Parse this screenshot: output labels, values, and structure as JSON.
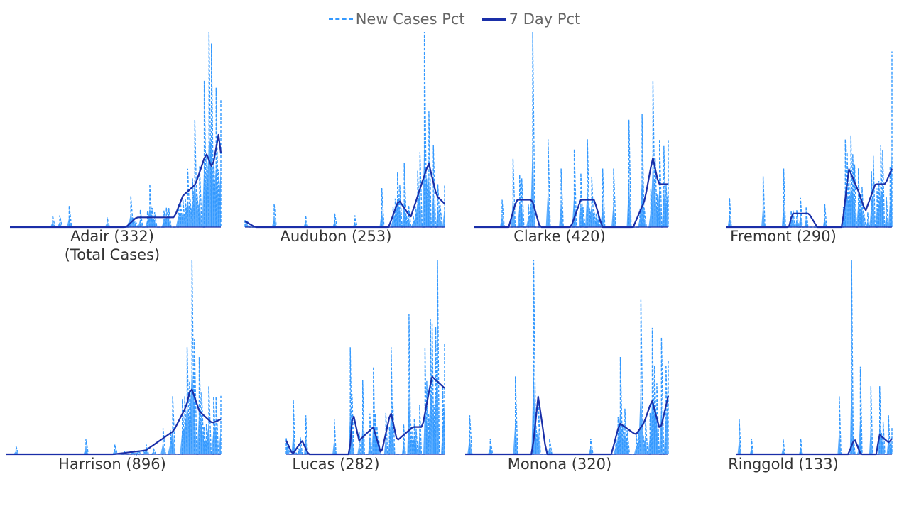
{
  "legend": {
    "series1": "New Cases Pct",
    "series2": "7 Day Pct"
  },
  "colors": {
    "new_cases": "#3399ff",
    "area_fill": "#55aaff",
    "seven_day": "#1a2fa8"
  },
  "chart_data": {
    "type": "line",
    "layout": "small-multiples 2x4",
    "series": [
      {
        "name": "New Cases Pct",
        "style": "dashed",
        "fill": "area"
      },
      {
        "name": "7 Day Pct",
        "style": "solid"
      }
    ],
    "axes": {
      "x_visible": false,
      "y_visible": false,
      "grid": false
    },
    "legend_position": "top-center",
    "panels": [
      {
        "county": "Adair",
        "label": "Adair (332)",
        "sublabel": "(Total Cases)",
        "peaks": [
          [
            0.2,
            0.06
          ],
          [
            0.24,
            0.06
          ],
          [
            0.28,
            0.11
          ],
          [
            0.46,
            0.05
          ],
          [
            0.57,
            0.16
          ],
          [
            0.66,
            0.22
          ],
          [
            0.74,
            0.06
          ],
          [
            0.82,
            0.14
          ],
          [
            0.86,
            0.25
          ],
          [
            0.88,
            0.55
          ],
          [
            0.92,
            0.75
          ],
          [
            0.94,
            1.0
          ],
          [
            0.96,
            0.94
          ],
          [
            0.98,
            0.6
          ],
          [
            1.0,
            0.65
          ]
        ],
        "peak_mean": [
          [
            0.0,
            0.0
          ],
          [
            0.55,
            0.0
          ],
          [
            0.6,
            0.05
          ],
          [
            0.78,
            0.05
          ],
          [
            0.82,
            0.16
          ],
          [
            0.88,
            0.22
          ],
          [
            0.93,
            0.38
          ],
          [
            0.96,
            0.3
          ],
          [
            0.99,
            0.48
          ],
          [
            1.0,
            0.38
          ]
        ]
      },
      {
        "county": "Audubon",
        "label": "Audubon (253)",
        "sublabel": "",
        "peaks": [
          [
            0.15,
            0.12
          ],
          [
            0.3,
            0.06
          ],
          [
            0.45,
            0.07
          ],
          [
            0.55,
            0.06
          ],
          [
            0.68,
            0.2
          ],
          [
            0.76,
            0.28
          ],
          [
            0.8,
            0.33
          ],
          [
            0.9,
            1.0
          ],
          [
            0.94,
            0.42
          ],
          [
            0.97,
            0.22
          ]
        ],
        "peak_mean": [
          [
            0.0,
            0.03
          ],
          [
            0.05,
            0.0
          ],
          [
            0.72,
            0.0
          ],
          [
            0.77,
            0.14
          ],
          [
            0.83,
            0.05
          ],
          [
            0.92,
            0.33
          ],
          [
            0.96,
            0.16
          ],
          [
            1.0,
            0.12
          ]
        ]
      },
      {
        "county": "Clarke",
        "label": "Clarke (420)",
        "sublabel": "",
        "peaks": [
          [
            0.15,
            0.14
          ],
          [
            0.2,
            0.35
          ],
          [
            0.25,
            0.25
          ],
          [
            0.3,
            1.0
          ],
          [
            0.38,
            0.45
          ],
          [
            0.45,
            0.3
          ],
          [
            0.52,
            0.4
          ],
          [
            0.58,
            0.45
          ],
          [
            0.66,
            0.3
          ],
          [
            0.72,
            0.3
          ],
          [
            0.8,
            0.55
          ],
          [
            0.86,
            0.58
          ],
          [
            0.92,
            0.75
          ],
          [
            0.96,
            0.45
          ],
          [
            1.0,
            0.45
          ]
        ],
        "peak_mean": [
          [
            0.0,
            0.0
          ],
          [
            0.18,
            0.0
          ],
          [
            0.22,
            0.14
          ],
          [
            0.3,
            0.14
          ],
          [
            0.34,
            0.0
          ],
          [
            0.5,
            0.0
          ],
          [
            0.55,
            0.14
          ],
          [
            0.62,
            0.14
          ],
          [
            0.66,
            0.0
          ],
          [
            0.82,
            0.0
          ],
          [
            0.88,
            0.14
          ],
          [
            0.92,
            0.36
          ],
          [
            0.95,
            0.22
          ],
          [
            1.0,
            0.22
          ]
        ]
      },
      {
        "county": "Fremont",
        "label": "Fremont (290)",
        "sublabel": "",
        "peaks": [
          [
            0.02,
            0.15
          ],
          [
            0.22,
            0.26
          ],
          [
            0.35,
            0.3
          ],
          [
            0.45,
            0.15
          ],
          [
            0.6,
            0.12
          ],
          [
            0.72,
            0.45
          ],
          [
            0.72,
            0.45
          ],
          [
            0.72,
            0.45
          ],
          [
            0.72,
            0.45
          ],
          [
            0.72,
            0.45
          ],
          [
            0.72,
            0.45
          ],
          [
            0.72,
            0.45
          ],
          [
            0.72,
            0.45
          ],
          [
            0.72,
            0.45
          ],
          [
            1.0,
            0.9
          ]
        ],
        "peak_mean": [
          [
            0.0,
            0.0
          ],
          [
            0.38,
            0.0
          ],
          [
            0.4,
            0.07
          ],
          [
            0.5,
            0.07
          ],
          [
            0.55,
            0.0
          ],
          [
            0.7,
            0.0
          ],
          [
            0.74,
            0.3
          ],
          [
            0.8,
            0.18
          ],
          [
            0.84,
            0.08
          ],
          [
            0.9,
            0.22
          ],
          [
            0.96,
            0.22
          ],
          [
            1.0,
            0.3
          ]
        ]
      },
      {
        "county": "Harrison",
        "label": "Harrison (896)",
        "sublabel": "",
        "peaks": [
          [
            0.05,
            0.04
          ],
          [
            0.37,
            0.08
          ],
          [
            0.5,
            0.05
          ],
          [
            0.65,
            0.05
          ],
          [
            0.78,
            0.3
          ],
          [
            0.84,
            0.55
          ],
          [
            0.86,
            1.0
          ],
          [
            0.9,
            0.5
          ],
          [
            0.94,
            0.35
          ],
          [
            1.0,
            0.3
          ]
        ],
        "peak_mean": [
          [
            0.0,
            0.0
          ],
          [
            0.5,
            0.0
          ],
          [
            0.65,
            0.02
          ],
          [
            0.78,
            0.12
          ],
          [
            0.84,
            0.25
          ],
          [
            0.86,
            0.35
          ],
          [
            0.9,
            0.22
          ],
          [
            0.96,
            0.16
          ],
          [
            1.0,
            0.18
          ]
        ]
      },
      {
        "county": "Lucas",
        "label": "Lucas (282)",
        "sublabel": "",
        "peaks": [
          [
            0.05,
            0.28
          ],
          [
            0.12,
            0.2
          ],
          [
            0.3,
            0.18
          ],
          [
            0.4,
            0.55
          ],
          [
            0.48,
            0.38
          ],
          [
            0.55,
            0.45
          ],
          [
            0.66,
            0.55
          ],
          [
            0.78,
            0.72
          ],
          [
            0.88,
            0.55
          ],
          [
            0.96,
            1.0
          ],
          [
            1.0,
            0.48
          ]
        ],
        "peak_mean": [
          [
            0.0,
            0.07
          ],
          [
            0.04,
            0.0
          ],
          [
            0.1,
            0.07
          ],
          [
            0.14,
            0.0
          ],
          [
            0.4,
            0.0
          ],
          [
            0.42,
            0.22
          ],
          [
            0.46,
            0.07
          ],
          [
            0.55,
            0.14
          ],
          [
            0.6,
            0.0
          ],
          [
            0.66,
            0.22
          ],
          [
            0.7,
            0.07
          ],
          [
            0.8,
            0.14
          ],
          [
            0.86,
            0.14
          ],
          [
            0.92,
            0.4
          ],
          [
            1.0,
            0.34
          ]
        ]
      },
      {
        "county": "Monona",
        "label": "Monona (320)",
        "sublabel": "",
        "peaks": [
          [
            0.02,
            0.2
          ],
          [
            0.12,
            0.08
          ],
          [
            0.25,
            0.4
          ],
          [
            0.34,
            1.0
          ],
          [
            0.42,
            0.08
          ],
          [
            0.62,
            0.08
          ],
          [
            0.76,
            0.5
          ],
          [
            0.86,
            0.8
          ],
          [
            0.92,
            0.65
          ],
          [
            0.97,
            0.6
          ]
        ],
        "peak_mean": [
          [
            0.0,
            0.0
          ],
          [
            0.33,
            0.0
          ],
          [
            0.36,
            0.3
          ],
          [
            0.4,
            0.0
          ],
          [
            0.72,
            0.0
          ],
          [
            0.76,
            0.16
          ],
          [
            0.84,
            0.1
          ],
          [
            0.88,
            0.16
          ],
          [
            0.92,
            0.28
          ],
          [
            0.96,
            0.12
          ],
          [
            1.0,
            0.3
          ]
        ]
      },
      {
        "county": "Ringgold",
        "label": "Ringgold (133)",
        "sublabel": "",
        "peaks": [
          [
            0.02,
            0.18
          ],
          [
            0.1,
            0.08
          ],
          [
            0.3,
            0.08
          ],
          [
            0.42,
            0.08
          ],
          [
            0.66,
            0.3
          ],
          [
            0.74,
            1.0
          ],
          [
            0.8,
            0.45
          ],
          [
            0.86,
            0.35
          ],
          [
            0.92,
            0.35
          ],
          [
            0.98,
            0.2
          ]
        ],
        "peak_mean": [
          [
            0.0,
            0.0
          ],
          [
            0.72,
            0.0
          ],
          [
            0.76,
            0.08
          ],
          [
            0.8,
            0.0
          ],
          [
            0.9,
            0.0
          ],
          [
            0.92,
            0.1
          ],
          [
            0.98,
            0.06
          ],
          [
            1.0,
            0.08
          ]
        ]
      }
    ]
  }
}
